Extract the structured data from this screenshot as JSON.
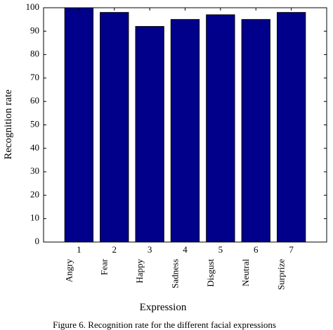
{
  "chart_data": {
    "type": "bar",
    "categories": [
      "1",
      "2",
      "3",
      "4",
      "5",
      "6",
      "7"
    ],
    "category_names": [
      "Angry",
      "Fear",
      "Happy",
      "Sadness",
      "Disgust",
      "Neutral",
      "Surprize"
    ],
    "values": [
      100,
      98,
      92,
      95,
      97,
      95,
      98
    ],
    "title": "",
    "xlabel": "Expression",
    "ylabel": "Recognition rate",
    "ylim": [
      0,
      100
    ],
    "yticks": [
      0,
      10,
      20,
      30,
      40,
      50,
      60,
      70,
      80,
      90,
      100
    ],
    "grid": false,
    "bar_color": "#00008b"
  },
  "caption": "Figure 6. Recognition rate for the different facial expressions"
}
